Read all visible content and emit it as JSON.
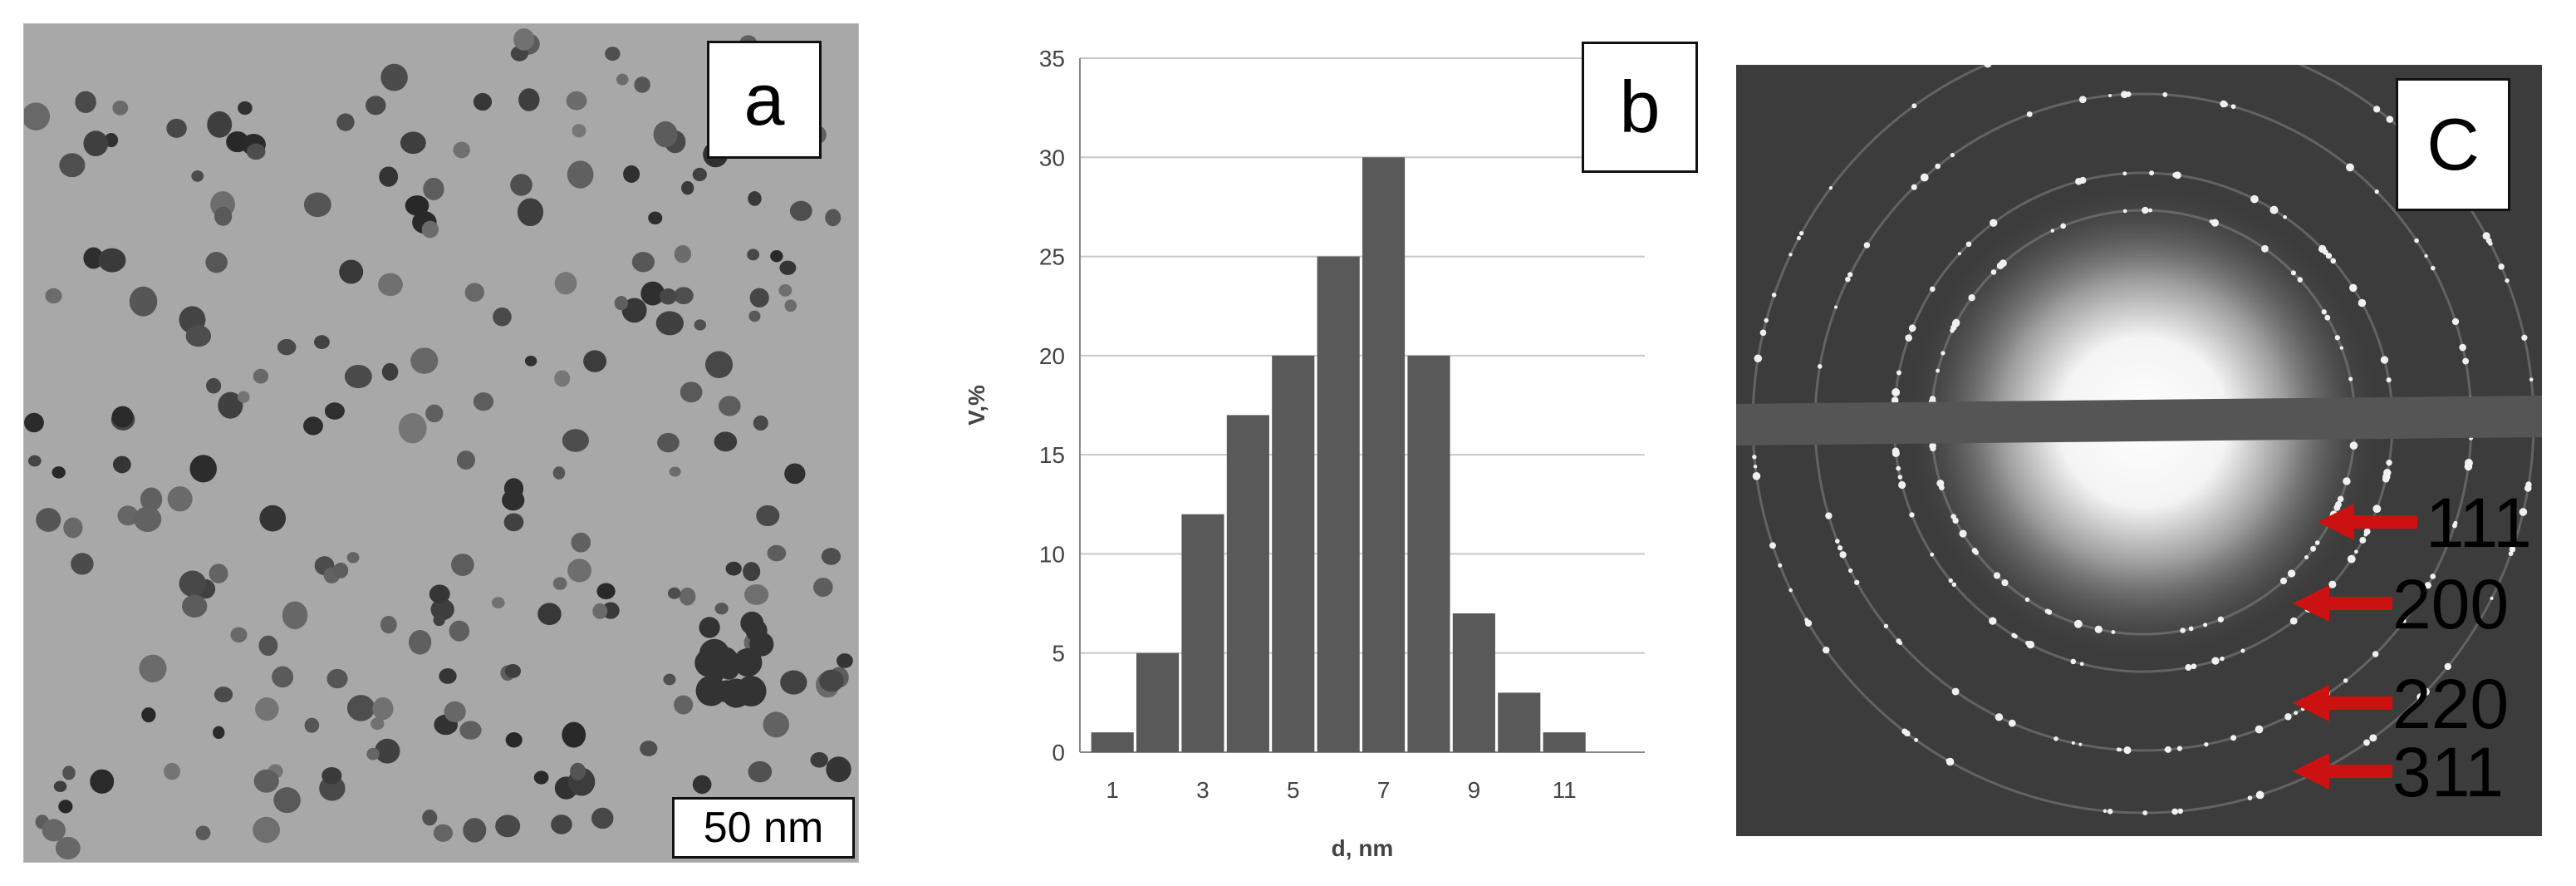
{
  "panels": {
    "a": {
      "label": "a",
      "scale_bar": "50 nm"
    },
    "b": {
      "label": "b"
    },
    "c": {
      "label": "C",
      "rings": [
        "111",
        "200",
        "220",
        "311"
      ],
      "arrow_color": "#cc1111"
    }
  },
  "chart_data": {
    "type": "bar",
    "xlabel": "d, nm",
    "ylabel": "V,%",
    "categories": [
      1,
      2,
      3,
      4,
      5,
      6,
      7,
      8,
      9,
      10,
      11
    ],
    "values": [
      1,
      5,
      12,
      17,
      20,
      25,
      30,
      20,
      7,
      3,
      1
    ],
    "x_tick_labels": [
      "1",
      "3",
      "5",
      "7",
      "9",
      "11"
    ],
    "y_ticks": [
      0,
      5,
      10,
      15,
      20,
      25,
      30,
      35
    ],
    "ylim": [
      0,
      35
    ],
    "grid": true,
    "bar_color": "#595959"
  }
}
